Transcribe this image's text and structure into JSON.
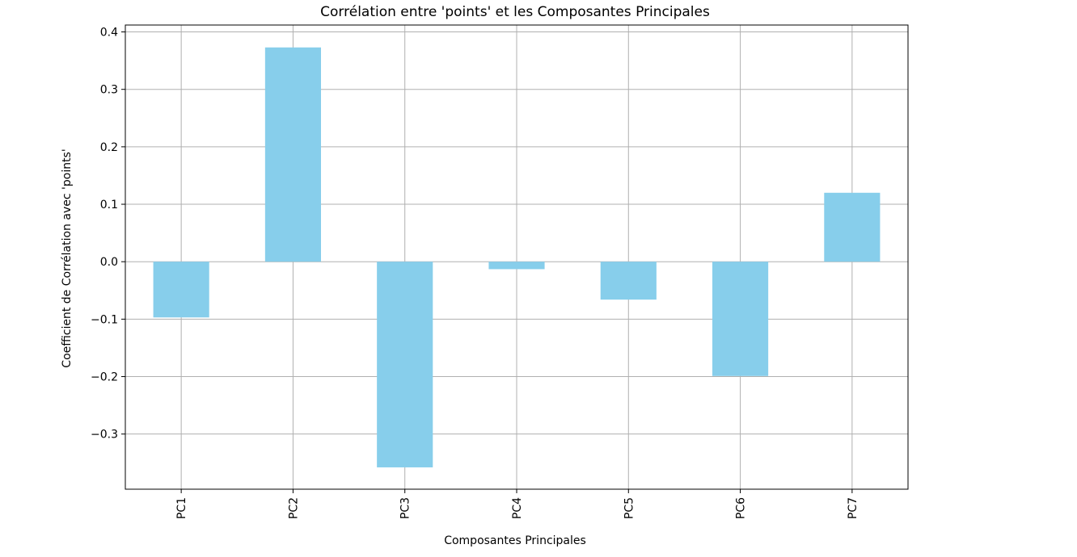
{
  "chart_data": {
    "type": "bar",
    "title": "Corrélation entre 'points' et les Composantes Principales",
    "xlabel": "Composantes Principales",
    "ylabel": "Coefficient de Corrélation avec 'points'",
    "categories": [
      "PC1",
      "PC2",
      "PC3",
      "PC4",
      "PC5",
      "PC6",
      "PC7"
    ],
    "values": [
      -0.097,
      0.373,
      -0.358,
      -0.013,
      -0.066,
      -0.199,
      0.12
    ],
    "ylim": [
      -0.396,
      0.412
    ],
    "yticks": [
      -0.3,
      -0.2,
      -0.1,
      0.0,
      0.1,
      0.2,
      0.3,
      0.4
    ],
    "ytick_labels": [
      "−0.3",
      "−0.2",
      "−0.1",
      "0.0",
      "0.1",
      "0.2",
      "0.3",
      "0.4"
    ],
    "grid": true,
    "bar_color": "#87ceeb",
    "grid_color": "#b0b0b0",
    "axis_color": "#000000"
  }
}
